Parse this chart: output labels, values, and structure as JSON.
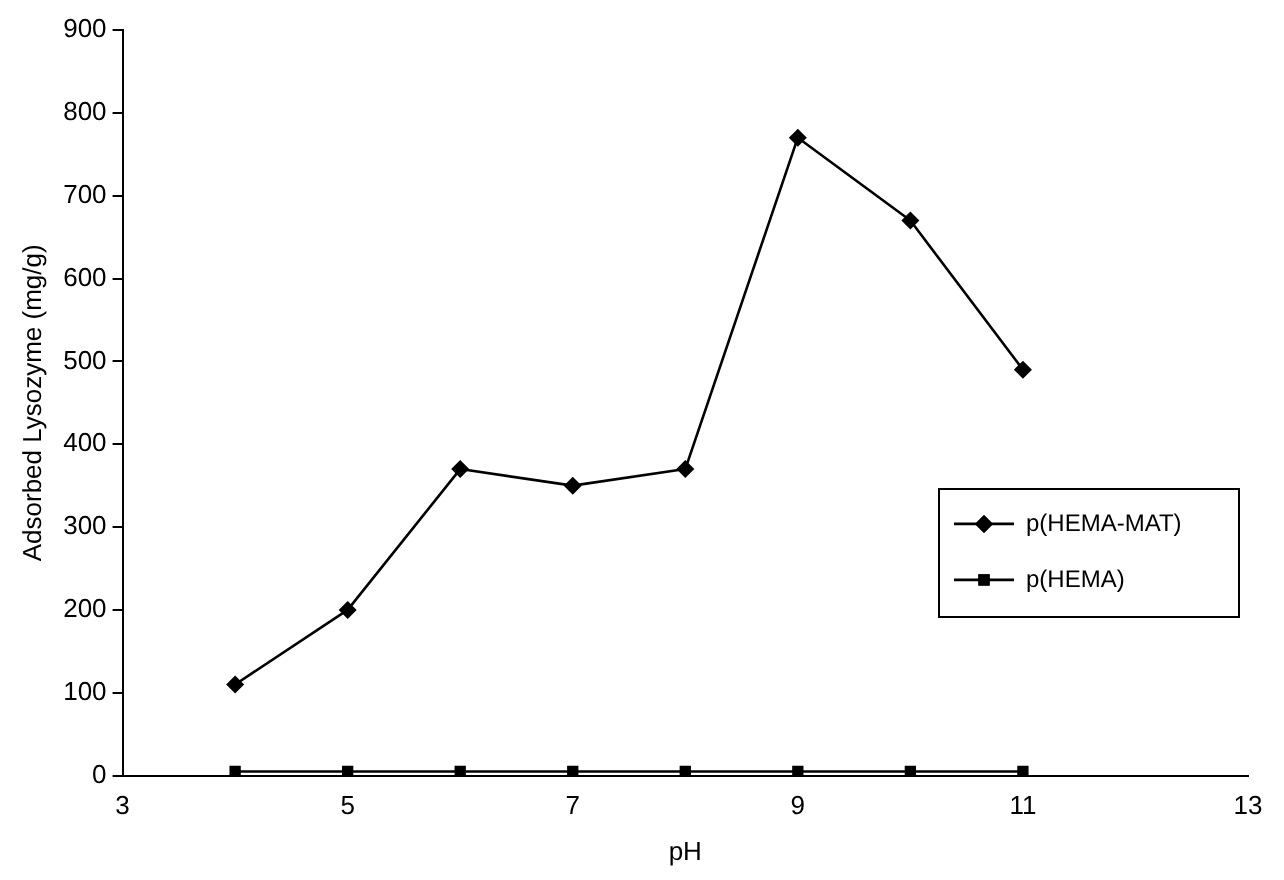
{
  "chart_data": {
    "type": "line",
    "xlabel": "pH",
    "ylabel": "Adsorbed Lysozyme (mg/g)",
    "x": [
      4,
      5,
      6,
      7,
      8,
      9,
      10,
      11
    ],
    "series": [
      {
        "name": "p(HEMA-MAT)",
        "color": "#000000",
        "marker": "diamond",
        "values": [
          110,
          200,
          370,
          350,
          370,
          770,
          670,
          490
        ]
      },
      {
        "name": "p(HEMA)",
        "color": "#000000",
        "marker": "square",
        "values": [
          5,
          5,
          5,
          5,
          5,
          5,
          5,
          5
        ]
      }
    ],
    "xlim": [
      3,
      13
    ],
    "xticks": [
      3,
      5,
      7,
      9,
      11,
      13
    ],
    "ylim": [
      0,
      900
    ],
    "yticks": [
      0,
      100,
      200,
      300,
      400,
      500,
      600,
      700,
      800,
      900
    ],
    "grid": false,
    "legend": "right",
    "line_style": "solid"
  }
}
